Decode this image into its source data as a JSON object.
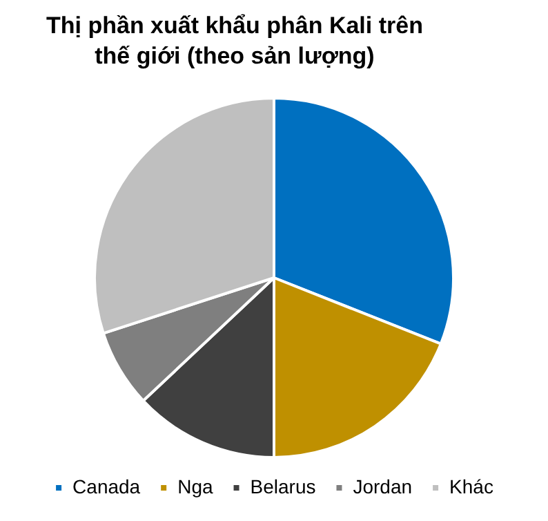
{
  "chart_data": {
    "type": "pie",
    "title": "Thị phần xuất khẩu phân Kali trên thế giới (theo sản lượng)",
    "categories": [
      "Canada",
      "Nga",
      "Belarus",
      "Jordan",
      "Khác"
    ],
    "values": [
      31,
      19,
      13,
      7,
      30
    ],
    "colors": [
      "#0070c0",
      "#bf9000",
      "#404040",
      "#7f7f7f",
      "#bfbfbf"
    ],
    "legend": "bottom"
  }
}
